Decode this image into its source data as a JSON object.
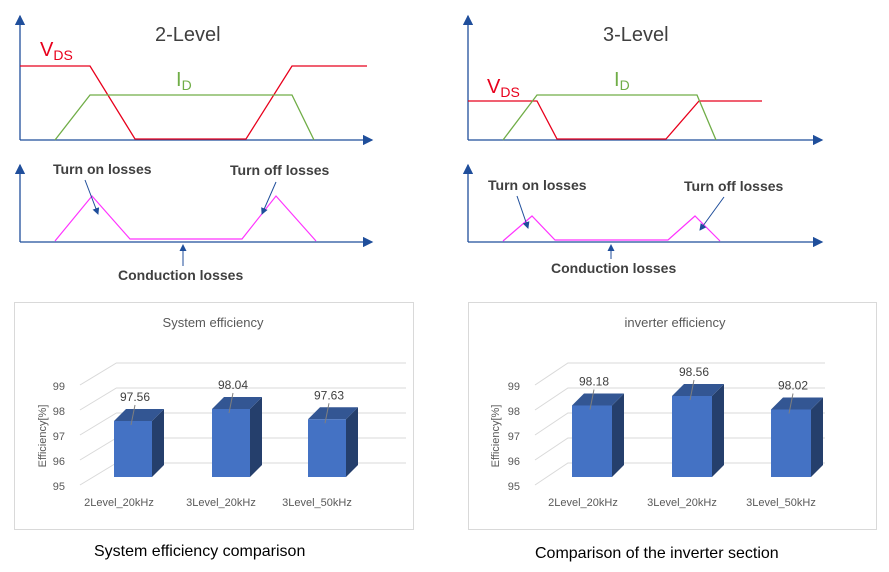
{
  "waveforms": [
    {
      "title": "2-Level",
      "vds_main": "V",
      "vds_sub": "DS",
      "id_main": "I",
      "id_sub": "D",
      "turn_on_label": "Turn on losses",
      "turn_off_label": "Turn off losses",
      "conduction_label": "Conduction losses"
    },
    {
      "title": "3-Level",
      "vds_main": "V",
      "vds_sub": "DS",
      "id_main": "I",
      "id_sub": "D",
      "turn_on_label": "Turn on losses",
      "turn_off_label": "Turn off losses",
      "conduction_label": "Conduction losses"
    }
  ],
  "colors": {
    "vds": "#e8001c",
    "id": "#70ad47",
    "loss": "#ff33ff",
    "axis": "#1f4e9b",
    "bar": "#4472c4"
  },
  "chart_data": [
    {
      "type": "bar",
      "title": "System efficiency",
      "ylabel": "Efficiency[%]",
      "categories": [
        "2Level_20kHz",
        "3Level_20kHz",
        "3Level_50kHz"
      ],
      "values": [
        97.56,
        98.04,
        97.63
      ],
      "value_labels": [
        "97.56",
        "98.04",
        "97.63"
      ],
      "ylim": [
        95,
        99
      ],
      "yticks": [
        "95",
        "96",
        "97",
        "98",
        "99"
      ],
      "grid": true,
      "caption": "System efficiency comparison"
    },
    {
      "type": "bar",
      "title": "inverter efficiency",
      "ylabel": "Efficiency[%]",
      "categories": [
        "2Level_20kHz",
        "3Level_20kHz",
        "3Level_50kHz"
      ],
      "values": [
        98.18,
        98.56,
        98.02
      ],
      "value_labels": [
        "98.18",
        "98.56",
        "98.02"
      ],
      "ylim": [
        95,
        99
      ],
      "yticks": [
        "95",
        "96",
        "97",
        "98",
        "99"
      ],
      "grid": true,
      "caption": "Comparison of the inverter section"
    }
  ]
}
